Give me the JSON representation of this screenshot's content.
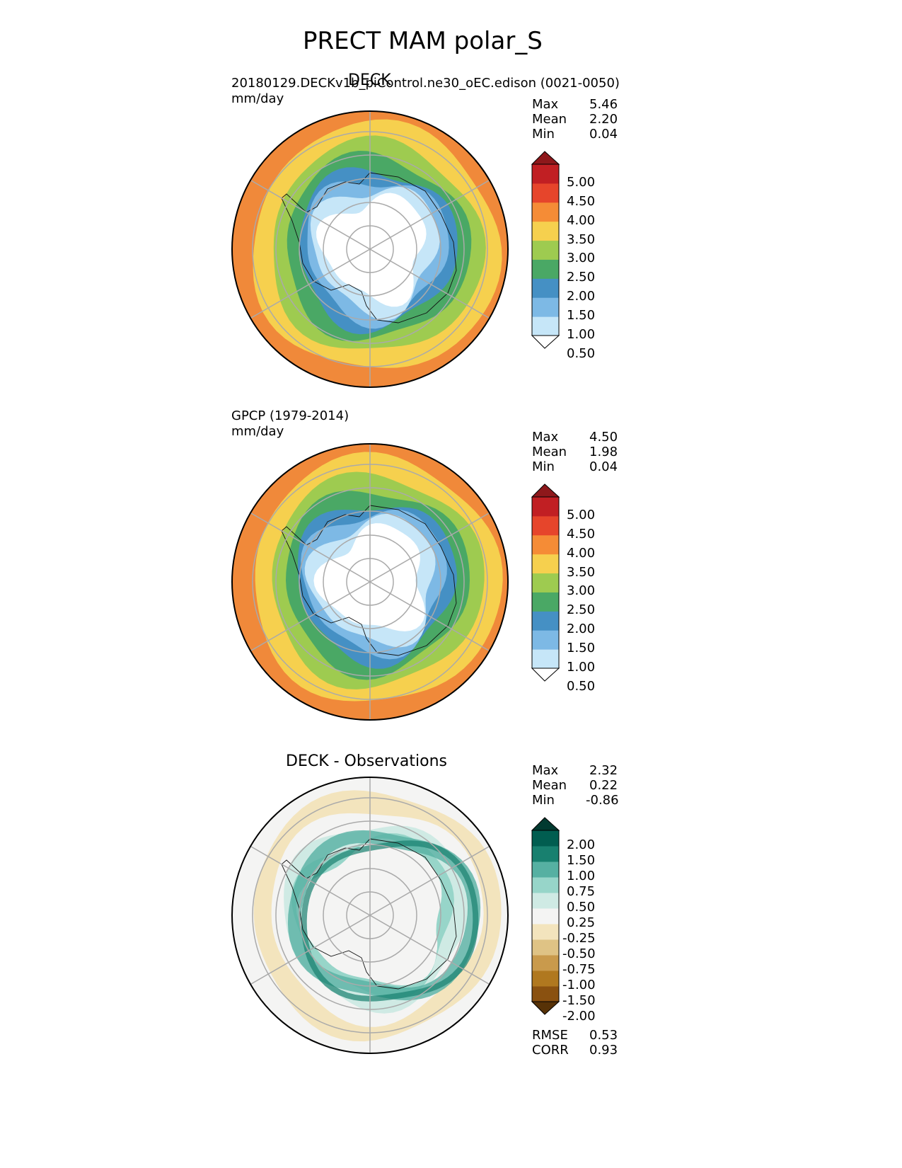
{
  "figure": {
    "title": "PRECT MAM polar_S"
  },
  "panels": [
    {
      "id": "test",
      "title": "DECK",
      "subtitle": "20180129.DECKv1b_piControl.ne30_oEC.edison (0021-0050)",
      "units": "mm/day",
      "stats": [
        {
          "label": "Max",
          "value": "5.46"
        },
        {
          "label": "Mean",
          "value": "2.20"
        },
        {
          "label": "Min",
          "value": "0.04"
        }
      ],
      "colorbar": {
        "labels": [
          "5.00",
          "4.50",
          "4.00",
          "3.50",
          "3.00",
          "2.50",
          "2.00",
          "1.50",
          "1.00",
          "0.50"
        ],
        "colors": [
          "#ffffff",
          "#c6e6f8",
          "#7db9e5",
          "#4590c4",
          "#4aa865",
          "#9ecb50",
          "#f6d04e",
          "#f58c36",
          "#e6452b",
          "#c11f23",
          "#8e181b"
        ]
      },
      "rings": [
        "#f0893a",
        "#f6d04e",
        "#9ecb50",
        "#4aa865",
        "#4590c4",
        "#7db9e5",
        "#c6e6f8",
        "#ffffff"
      ]
    },
    {
      "id": "reference",
      "title": "",
      "subtitle": "GPCP (1979-2014)",
      "units": "mm/day",
      "stats": [
        {
          "label": "Max",
          "value": "4.50"
        },
        {
          "label": "Mean",
          "value": "1.98"
        },
        {
          "label": "Min",
          "value": "0.04"
        }
      ],
      "colorbar": {
        "labels": [
          "5.00",
          "4.50",
          "4.00",
          "3.50",
          "3.00",
          "2.50",
          "2.00",
          "1.50",
          "1.00",
          "0.50"
        ],
        "colors": [
          "#ffffff",
          "#c6e6f8",
          "#7db9e5",
          "#4590c4",
          "#4aa865",
          "#9ecb50",
          "#f6d04e",
          "#f58c36",
          "#e6452b",
          "#c11f23",
          "#8e181b"
        ]
      },
      "rings": [
        "#f0893a",
        "#f6d04e",
        "#9ecb50",
        "#4aa865",
        "#4590c4",
        "#7db9e5",
        "#c6e6f8",
        "#ffffff"
      ]
    },
    {
      "id": "difference",
      "title": "DECK - Observations",
      "subtitle": "",
      "units": "",
      "stats": [
        {
          "label": "Max",
          "value": "2.32"
        },
        {
          "label": "Mean",
          "value": "0.22"
        },
        {
          "label": "Min",
          "value": "-0.86"
        }
      ],
      "extra_stats": [
        {
          "label": "RMSE",
          "value": "0.53"
        },
        {
          "label": "CORR",
          "value": "0.93"
        }
      ],
      "colorbar": {
        "labels": [
          "2.00",
          "1.50",
          "1.00",
          "0.75",
          "0.50",
          "0.25",
          "-0.25",
          "-0.50",
          "-0.75",
          "-1.00",
          "-1.50",
          "-2.00"
        ],
        "colors": [
          "#573207",
          "#8a5110",
          "#b0781f",
          "#c99a4c",
          "#dfc385",
          "#f3e4bd",
          "#f4f4f3",
          "#cfeae4",
          "#97d5c9",
          "#56b0a2",
          "#18806f",
          "#015d50",
          "#013a30"
        ]
      },
      "rings": [
        "#f4f4f3",
        "#f3e4bd",
        "#f4f4f3",
        "#cfeae4",
        "#97d5c9",
        "#f4f4f3",
        "#f4f4f3",
        "#f4f4f3"
      ]
    }
  ]
}
